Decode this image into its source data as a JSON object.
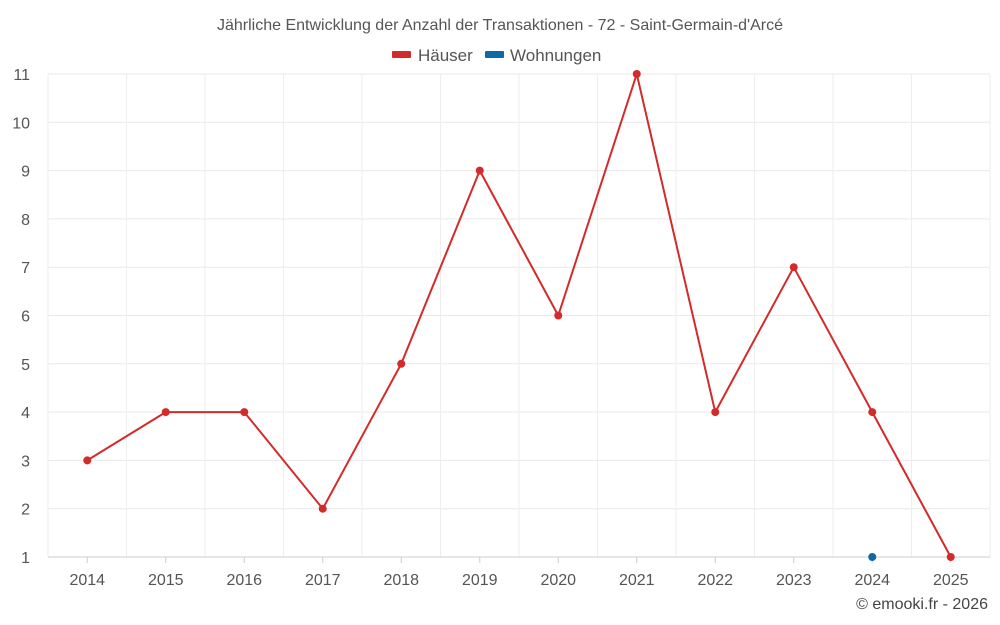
{
  "chart_data": {
    "type": "line",
    "title": "Jährliche Entwicklung der Anzahl der Transaktionen - 72 - Saint-Germain-d'Arcé",
    "categories": [
      "2014",
      "2015",
      "2016",
      "2017",
      "2018",
      "2019",
      "2020",
      "2021",
      "2022",
      "2023",
      "2024",
      "2025"
    ],
    "ylim": [
      1,
      11
    ],
    "yticks": [
      "1",
      "2",
      "3",
      "4",
      "5",
      "6",
      "7",
      "8",
      "9",
      "10",
      "11"
    ],
    "grid": true,
    "legend_position": "top-center",
    "series": [
      {
        "name": "Häuser",
        "color": "#d32a2a",
        "values": [
          3,
          4,
          4,
          2,
          5,
          9,
          6,
          11,
          4,
          7,
          4,
          1
        ]
      },
      {
        "name": "Wohnungen",
        "color": "#0e6aa5",
        "values": [
          null,
          null,
          null,
          null,
          null,
          null,
          null,
          null,
          null,
          null,
          1,
          null
        ]
      }
    ]
  },
  "credit": "© emooki.fr - 2026"
}
